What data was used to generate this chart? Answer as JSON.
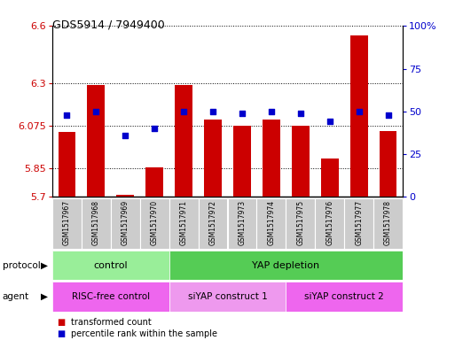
{
  "title": "GDS5914 / 7949400",
  "samples": [
    "GSM1517967",
    "GSM1517968",
    "GSM1517969",
    "GSM1517970",
    "GSM1517971",
    "GSM1517972",
    "GSM1517973",
    "GSM1517974",
    "GSM1517975",
    "GSM1517976",
    "GSM1517977",
    "GSM1517978"
  ],
  "transformed_counts": [
    6.04,
    6.29,
    5.71,
    5.855,
    6.29,
    6.105,
    6.075,
    6.105,
    6.075,
    5.9,
    6.55,
    6.045
  ],
  "percentile_ranks_pct": [
    48,
    50,
    36,
    40,
    50,
    50,
    49,
    50,
    49,
    44,
    50,
    48
  ],
  "ymin": 5.7,
  "ymax": 6.6,
  "yticks": [
    5.7,
    5.85,
    6.075,
    6.3,
    6.6
  ],
  "ytick_labels": [
    "5.7",
    "5.85",
    "6.075",
    "6.3",
    "6.6"
  ],
  "y2min": 0,
  "y2max": 100,
  "y2ticks": [
    0,
    25,
    50,
    75,
    100
  ],
  "y2tick_labels": [
    "0",
    "25",
    "50",
    "75",
    "100%"
  ],
  "bar_color": "#cc0000",
  "dot_color": "#0000cc",
  "protocol_groups": [
    {
      "label": "control",
      "start": 0,
      "end": 4,
      "color": "#99ee99"
    },
    {
      "label": "YAP depletion",
      "start": 4,
      "end": 12,
      "color": "#55cc55"
    }
  ],
  "agent_groups": [
    {
      "label": "RISC-free control",
      "start": 0,
      "end": 4,
      "color": "#ee66ee"
    },
    {
      "label": "siYAP construct 1",
      "start": 4,
      "end": 8,
      "color": "#ee99ee"
    },
    {
      "label": "siYAP construct 2",
      "start": 8,
      "end": 12,
      "color": "#ee66ee"
    }
  ],
  "protocol_label": "protocol",
  "agent_label": "agent",
  "legend_bar_label": "transformed count",
  "legend_dot_label": "percentile rank within the sample",
  "tick_label_color_left": "#cc0000",
  "tick_label_color_right": "#0000cc",
  "title_fontsize": 9,
  "axis_fontsize": 7.5,
  "sample_fontsize": 5.5,
  "legend_fontsize": 7
}
